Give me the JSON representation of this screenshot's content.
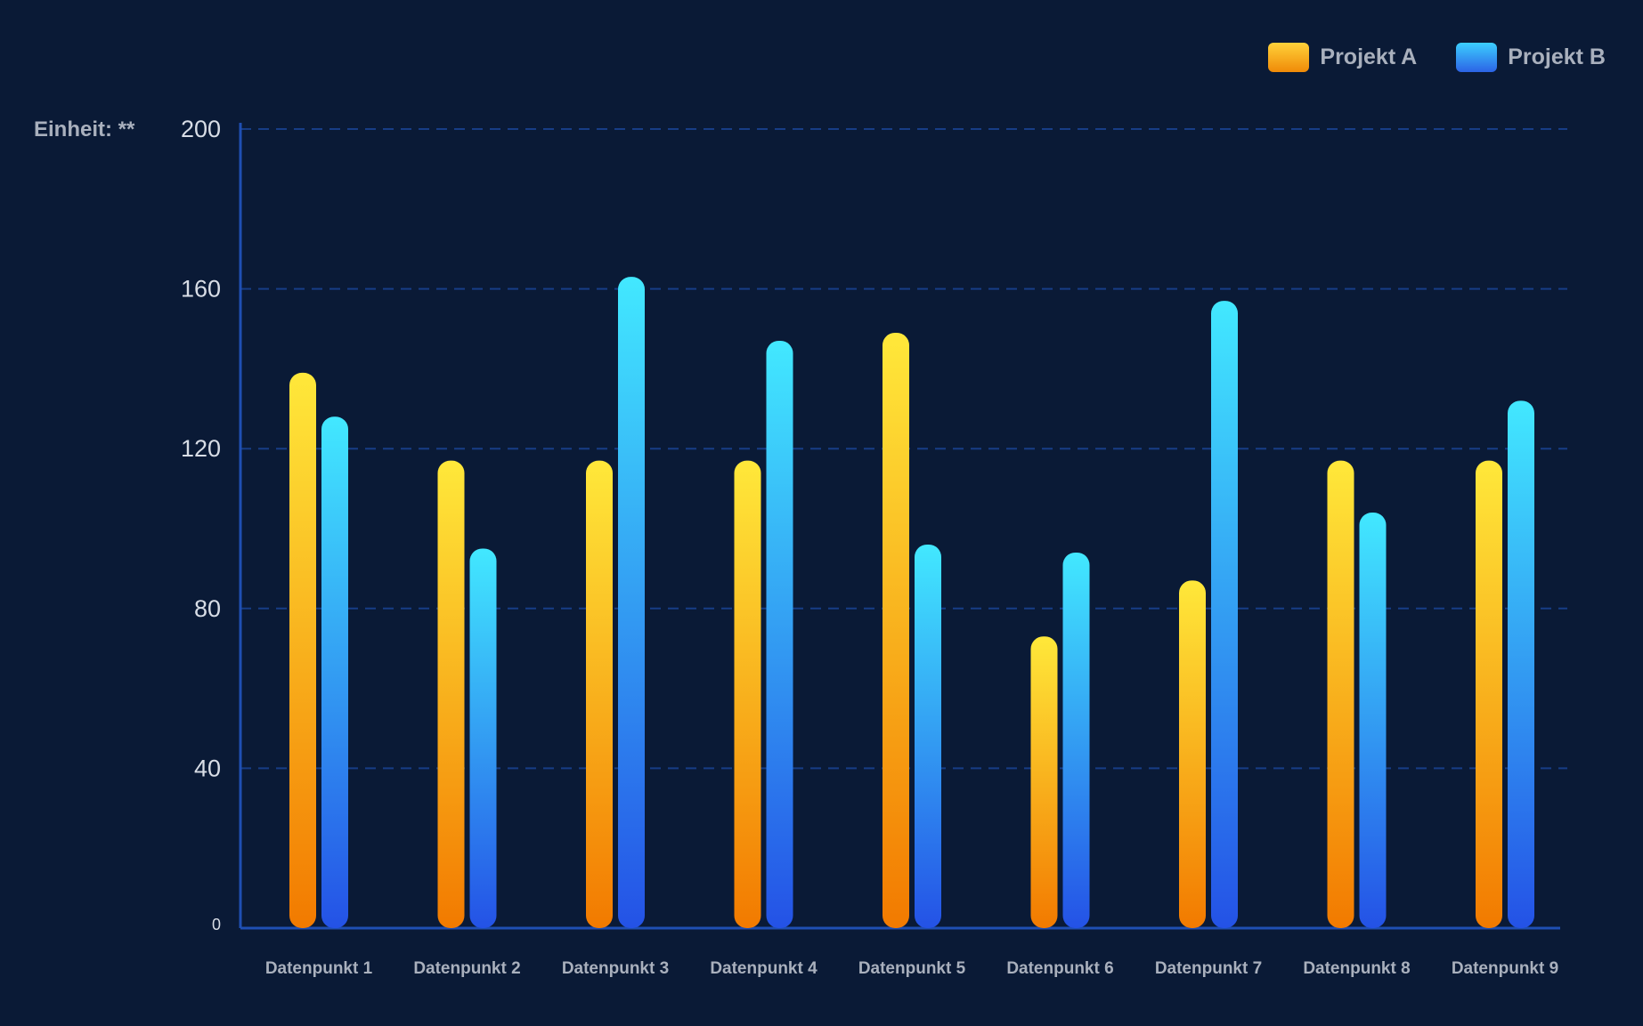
{
  "chart_data": {
    "type": "bar",
    "unit_label": "Einheit: **",
    "categories": [
      "Datenpunkt 1",
      "Datenpunkt 2",
      "Datenpunkt 3",
      "Datenpunkt 4",
      "Datenpunkt 5",
      "Datenpunkt 6",
      "Datenpunkt 7",
      "Datenpunkt 8",
      "Datenpunkt 9"
    ],
    "series": [
      {
        "name": "Projekt A",
        "values": [
          139,
          117,
          117,
          117,
          149,
          73,
          87,
          117,
          117
        ]
      },
      {
        "name": "Projekt B",
        "values": [
          128,
          95,
          163,
          147,
          96,
          94,
          157,
          104,
          132
        ]
      }
    ],
    "y_ticks": [
      "0",
      "40",
      "80",
      "120",
      "160",
      "200"
    ],
    "ylim": [
      0,
      200
    ],
    "grid": true,
    "legend_position": "top-right",
    "colors": {
      "projekt_a_top": "#ffe83a",
      "projekt_a_bottom": "#f27a00",
      "projekt_b_top": "#42e8ff",
      "projekt_b_bottom": "#2452e6",
      "axis": "#1f4fb3",
      "grid": "#173d86",
      "background": "#0a1a36"
    }
  }
}
